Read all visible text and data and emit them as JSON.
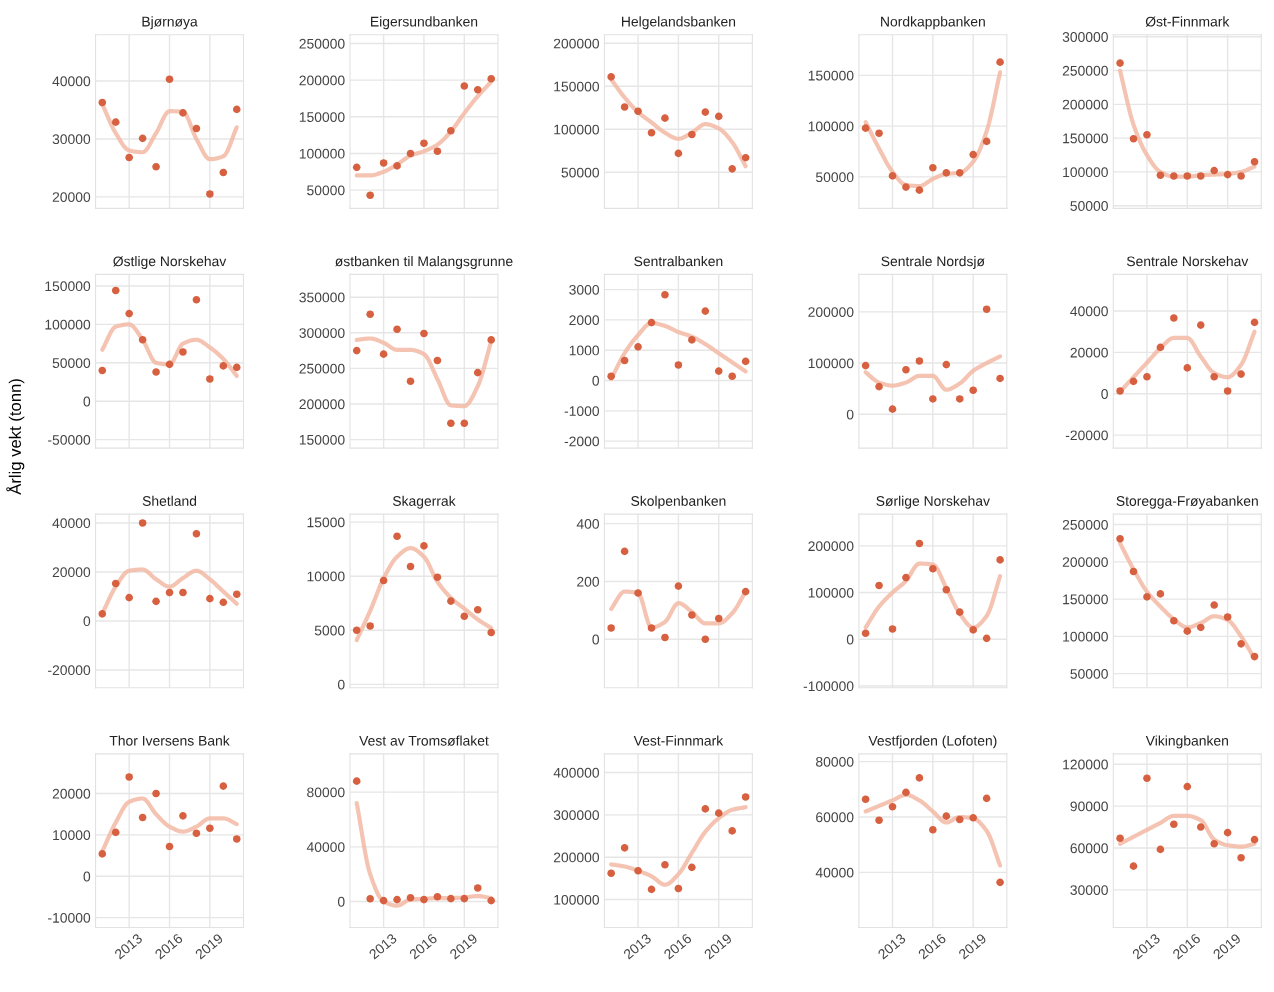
{
  "chart_data": [
    {
      "type": "scatter",
      "title": "Bjørnøya",
      "x": [
        2011,
        2012,
        2013,
        2014,
        2015,
        2016,
        2017,
        2018,
        2019,
        2020,
        2021
      ],
      "xlim": [
        2010.5,
        2021.5
      ],
      "xticks": [
        2013,
        2016,
        2019
      ],
      "ylim": [
        18000,
        48000
      ],
      "yticks": [
        20000,
        30000,
        40000
      ],
      "grid": true,
      "tick_labels": "y",
      "series": [
        {
          "type": "line",
          "color": "#f2b9a5",
          "values": [
            36000,
            31000,
            28000,
            27700,
            31000,
            34800,
            34700,
            30000,
            26500,
            27000,
            32000
          ]
        },
        {
          "type": "scatter",
          "color": "#d6603f",
          "values": [
            36300,
            32900,
            26800,
            30100,
            25200,
            40300,
            34500,
            31800,
            20500,
            24200,
            35100
          ]
        }
      ]
    },
    {
      "type": "scatter",
      "title": "Eigersundbanken",
      "x": [
        2011,
        2012,
        2013,
        2014,
        2015,
        2016,
        2017,
        2018,
        2019,
        2020,
        2021
      ],
      "xlim": [
        2010.5,
        2021.5
      ],
      "xticks": [
        2013,
        2016,
        2019
      ],
      "ylim": [
        25000,
        262000
      ],
      "yticks": [
        50000,
        100000,
        150000,
        200000,
        250000
      ],
      "grid": true,
      "tick_labels": "y",
      "series": [
        {
          "type": "line",
          "color": "#f2b9a5",
          "values": [
            70000,
            70000,
            75000,
            85000,
            97000,
            103000,
            112000,
            130000,
            155000,
            178000,
            198000
          ]
        },
        {
          "type": "scatter",
          "color": "#d6603f",
          "values": [
            81000,
            43000,
            87000,
            83000,
            100000,
            114000,
            103000,
            131000,
            192000,
            187000,
            202000
          ]
        }
      ]
    },
    {
      "type": "scatter",
      "title": "Helgelandsbanken",
      "x": [
        2011,
        2012,
        2013,
        2014,
        2015,
        2016,
        2017,
        2018,
        2019,
        2020,
        2021
      ],
      "xlim": [
        2010.5,
        2021.5
      ],
      "xticks": [
        2013,
        2016,
        2019
      ],
      "ylim": [
        8000,
        210000
      ],
      "yticks": [
        50000,
        100000,
        150000,
        200000
      ],
      "grid": true,
      "tick_labels": "y",
      "series": [
        {
          "type": "line",
          "color": "#f2b9a5",
          "values": [
            158000,
            137000,
            120000,
            108000,
            96000,
            89000,
            96000,
            106000,
            101000,
            85000,
            57000
          ]
        },
        {
          "type": "scatter",
          "color": "#d6603f",
          "values": [
            161000,
            126000,
            121000,
            96000,
            113000,
            72000,
            94000,
            120000,
            115000,
            54000,
            67000
          ]
        }
      ]
    },
    {
      "type": "scatter",
      "title": "Nordkappbanken",
      "x": [
        2011,
        2012,
        2013,
        2014,
        2015,
        2016,
        2017,
        2018,
        2019,
        2020,
        2021
      ],
      "xlim": [
        2010.5,
        2021.5
      ],
      "xticks": [
        2013,
        2016,
        2019
      ],
      "ylim": [
        19000,
        190000
      ],
      "yticks": [
        50000,
        100000,
        150000
      ],
      "grid": true,
      "tick_labels": "y",
      "series": [
        {
          "type": "line",
          "color": "#f2b9a5",
          "values": [
            104000,
            78000,
            55000,
            42000,
            41000,
            48000,
            53000,
            54000,
            65000,
            95000,
            153000
          ]
        },
        {
          "type": "scatter",
          "color": "#d6603f",
          "values": [
            98000,
            93000,
            51000,
            40000,
            37000,
            59000,
            54000,
            54000,
            72000,
            85000,
            163000
          ]
        }
      ]
    },
    {
      "type": "scatter",
      "title": "Øst-Finnmark",
      "x": [
        2011,
        2012,
        2013,
        2014,
        2015,
        2016,
        2017,
        2018,
        2019,
        2020,
        2021
      ],
      "xlim": [
        2010.5,
        2021.5
      ],
      "xticks": [
        2013,
        2016,
        2019
      ],
      "ylim": [
        46000,
        303000
      ],
      "yticks": [
        50000,
        100000,
        150000,
        200000,
        250000,
        300000
      ],
      "grid": true,
      "tick_labels": "y",
      "series": [
        {
          "type": "line",
          "color": "#f2b9a5",
          "values": [
            250000,
            170000,
            125000,
            100000,
            93000,
            93000,
            95000,
            96000,
            97000,
            100000,
            108000
          ]
        },
        {
          "type": "scatter",
          "color": "#d6603f",
          "values": [
            261000,
            149000,
            155000,
            95000,
            94000,
            94000,
            94000,
            102000,
            96000,
            94000,
            115000
          ]
        }
      ]
    },
    {
      "type": "scatter",
      "title": "Østlige Norskehav",
      "x": [
        2011,
        2012,
        2013,
        2014,
        2015,
        2016,
        2017,
        2018,
        2019,
        2020,
        2021
      ],
      "xlim": [
        2010.5,
        2021.5
      ],
      "xticks": [
        2013,
        2016,
        2019
      ],
      "ylim": [
        -61000,
        165000
      ],
      "yticks": [
        -50000,
        0,
        50000,
        100000,
        150000
      ],
      "grid": true,
      "tick_labels": "y",
      "series": [
        {
          "type": "line",
          "color": "#f2b9a5",
          "values": [
            67000,
            97000,
            100000,
            80000,
            50000,
            48000,
            75000,
            80000,
            70000,
            55000,
            33000
          ]
        },
        {
          "type": "scatter",
          "color": "#d6603f",
          "values": [
            40000,
            144000,
            114000,
            80000,
            38000,
            48000,
            64000,
            132000,
            29000,
            46000,
            44000
          ]
        }
      ]
    },
    {
      "type": "scatter",
      "title": "østbanken til Malangsgrunne",
      "x": [
        2011,
        2012,
        2013,
        2014,
        2015,
        2016,
        2017,
        2018,
        2019,
        2020,
        2021
      ],
      "xlim": [
        2010.5,
        2021.5
      ],
      "xticks": [
        2013,
        2016,
        2019
      ],
      "ylim": [
        138000,
        382000
      ],
      "yticks": [
        150000,
        200000,
        250000,
        300000,
        350000
      ],
      "grid": true,
      "tick_labels": "y",
      "series": [
        {
          "type": "line",
          "color": "#f2b9a5",
          "values": [
            290000,
            292000,
            286000,
            276000,
            276000,
            270000,
            235000,
            198000,
            197000,
            225000,
            288000
          ]
        },
        {
          "type": "scatter",
          "color": "#d6603f",
          "values": [
            275000,
            326000,
            270000,
            305000,
            232000,
            299000,
            261000,
            173000,
            173000,
            244000,
            290000
          ]
        }
      ]
    },
    {
      "type": "scatter",
      "title": "Sentralbanken",
      "x": [
        2011,
        2012,
        2013,
        2014,
        2015,
        2016,
        2017,
        2018,
        2019,
        2020,
        2021
      ],
      "xlim": [
        2010.5,
        2021.5
      ],
      "xticks": [
        2013,
        2016,
        2019
      ],
      "ylim": [
        -2230,
        3500
      ],
      "yticks": [
        -2000,
        -1000,
        0,
        1000,
        2000,
        3000
      ],
      "grid": true,
      "tick_labels": "y",
      "series": [
        {
          "type": "line",
          "color": "#f2b9a5",
          "values": [
            50,
            900,
            1500,
            1900,
            1800,
            1600,
            1450,
            1200,
            900,
            600,
            300
          ]
        },
        {
          "type": "scatter",
          "color": "#d6603f",
          "values": [
            140,
            660,
            1110,
            1910,
            2830,
            510,
            1340,
            2290,
            310,
            140,
            630
          ]
        }
      ]
    },
    {
      "type": "scatter",
      "title": "Sentrale Nordsjø",
      "x": [
        2011,
        2012,
        2013,
        2014,
        2015,
        2016,
        2017,
        2018,
        2019,
        2020,
        2021
      ],
      "xlim": [
        2010.5,
        2021.5
      ],
      "xticks": [
        2013,
        2016,
        2019
      ],
      "ylim": [
        -66000,
        273000
      ],
      "yticks": [
        0,
        100000,
        200000
      ],
      "grid": true,
      "tick_labels": "y",
      "series": [
        {
          "type": "line",
          "color": "#f2b9a5",
          "values": [
            82000,
            62000,
            56000,
            62000,
            75000,
            75000,
            48000,
            60000,
            85000,
            100000,
            113000
          ]
        },
        {
          "type": "scatter",
          "color": "#d6603f",
          "values": [
            95000,
            54000,
            10000,
            87000,
            104000,
            30000,
            97000,
            30000,
            47000,
            205000,
            70000
          ]
        }
      ]
    },
    {
      "type": "scatter",
      "title": "Sentrale Norskehav",
      "x": [
        2011,
        2012,
        2013,
        2014,
        2015,
        2016,
        2017,
        2018,
        2019,
        2020,
        2021
      ],
      "xlim": [
        2010.5,
        2021.5
      ],
      "xticks": [
        2013,
        2016,
        2019
      ],
      "ylim": [
        -26300,
        57700
      ],
      "yticks": [
        -20000,
        0,
        20000,
        40000
      ],
      "grid": true,
      "tick_labels": "y",
      "series": [
        {
          "type": "line",
          "color": "#f2b9a5",
          "values": [
            1000,
            8000,
            15000,
            22000,
            27000,
            27000,
            18000,
            10000,
            8000,
            14000,
            30000
          ]
        },
        {
          "type": "scatter",
          "color": "#d6603f",
          "values": [
            1300,
            6000,
            8200,
            22400,
            36600,
            12500,
            33200,
            8200,
            1300,
            9500,
            34500
          ]
        }
      ]
    },
    {
      "type": "scatter",
      "title": "Shetland",
      "ylabel": "Årlig vekt (tonn)",
      "x": [
        2011,
        2012,
        2013,
        2014,
        2015,
        2016,
        2017,
        2018,
        2019,
        2020,
        2021
      ],
      "xlim": [
        2010.5,
        2021.5
      ],
      "xticks": [
        2013,
        2016,
        2019
      ],
      "ylim": [
        -27300,
        43600
      ],
      "yticks": [
        -20000,
        0,
        20000,
        40000
      ],
      "grid": true,
      "tick_labels": "y",
      "series": [
        {
          "type": "line",
          "color": "#f2b9a5",
          "values": [
            3000,
            14000,
            20500,
            21000,
            17000,
            14000,
            17500,
            20500,
            17000,
            12000,
            7000
          ]
        },
        {
          "type": "scatter",
          "color": "#d6603f",
          "values": [
            2900,
            15300,
            9500,
            40000,
            8000,
            11600,
            11600,
            35600,
            9100,
            7600,
            10900
          ]
        }
      ]
    },
    {
      "type": "scatter",
      "title": "Skagerrak",
      "x": [
        2011,
        2012,
        2013,
        2014,
        2015,
        2016,
        2017,
        2018,
        2019,
        2020,
        2021
      ],
      "xlim": [
        2010.5,
        2021.5
      ],
      "xticks": [
        2013,
        2016,
        2019
      ],
      "ylim": [
        -320,
        15740
      ],
      "yticks": [
        0,
        5000,
        10000,
        15000
      ],
      "grid": true,
      "tick_labels": "y",
      "series": [
        {
          "type": "line",
          "color": "#f2b9a5",
          "values": [
            4100,
            6800,
            9800,
            11800,
            12600,
            11800,
            9500,
            8000,
            7000,
            6000,
            5200
          ]
        },
        {
          "type": "scatter",
          "color": "#d6603f",
          "values": [
            5000,
            5400,
            9600,
            13700,
            10900,
            12800,
            9900,
            7700,
            6300,
            6900,
            4800
          ]
        }
      ]
    },
    {
      "type": "scatter",
      "title": "Skolpenbanken",
      "x": [
        2011,
        2012,
        2013,
        2014,
        2015,
        2016,
        2017,
        2018,
        2019,
        2020,
        2021
      ],
      "xlim": [
        2010.5,
        2021.5
      ],
      "xticks": [
        2013,
        2016,
        2019
      ],
      "ylim": [
        -168,
        433
      ],
      "yticks": [
        0,
        200,
        400
      ],
      "grid": true,
      "tick_labels": "y",
      "series": [
        {
          "type": "line",
          "color": "#f2b9a5",
          "values": [
            105,
            165,
            160,
            40,
            60,
            125,
            95,
            55,
            55,
            90,
            165
          ]
        },
        {
          "type": "scatter",
          "color": "#d6603f",
          "values": [
            39,
            304,
            160,
            39,
            6,
            184,
            84,
            0,
            72,
            null,
            165
          ]
        }
      ]
    },
    {
      "type": "scatter",
      "title": "Sørlige Norskehav",
      "x": [
        2011,
        2012,
        2013,
        2014,
        2015,
        2016,
        2017,
        2018,
        2019,
        2020,
        2021
      ],
      "xlim": [
        2010.5,
        2021.5
      ],
      "xticks": [
        2013,
        2016,
        2019
      ],
      "ylim": [
        -104000,
        268000
      ],
      "yticks": [
        -100000,
        0,
        100000,
        200000
      ],
      "grid": true,
      "tick_labels": "y",
      "series": [
        {
          "type": "line",
          "color": "#f2b9a5",
          "values": [
            25000,
            70000,
            100000,
            125000,
            162000,
            160000,
            110000,
            55000,
            25000,
            50000,
            135000
          ]
        },
        {
          "type": "scatter",
          "color": "#d6603f",
          "values": [
            13000,
            115000,
            22000,
            132000,
            205000,
            151000,
            106000,
            58000,
            20000,
            2000,
            170000
          ]
        }
      ]
    },
    {
      "type": "scatter",
      "title": "Storegga-Frøyabanken",
      "x": [
        2011,
        2012,
        2013,
        2014,
        2015,
        2016,
        2017,
        2018,
        2019,
        2020,
        2021
      ],
      "xlim": [
        2010.5,
        2021.5
      ],
      "xticks": [
        2013,
        2016,
        2019
      ],
      "ylim": [
        31000,
        264000
      ],
      "yticks": [
        50000,
        100000,
        150000,
        200000,
        250000
      ],
      "grid": true,
      "tick_labels": "y",
      "series": [
        {
          "type": "line",
          "color": "#f2b9a5",
          "values": [
            225000,
            190000,
            160000,
            140000,
            123000,
            112000,
            118000,
            127000,
            122000,
            100000,
            70000
          ]
        },
        {
          "type": "scatter",
          "color": "#d6603f",
          "values": [
            231000,
            187000,
            153000,
            157000,
            121000,
            107000,
            112000,
            142000,
            126000,
            90000,
            73000
          ]
        }
      ]
    },
    {
      "type": "scatter",
      "title": "Thor Iversens Bank",
      "x": [
        2011,
        2012,
        2013,
        2014,
        2015,
        2016,
        2017,
        2018,
        2019,
        2020,
        2021
      ],
      "xlim": [
        2010.5,
        2021.5
      ],
      "xticks": [
        2013,
        2016,
        2019
      ],
      "ylim": [
        -12400,
        29600
      ],
      "yticks": [
        -10000,
        0,
        10000,
        20000
      ],
      "grid": true,
      "series": [
        {
          "type": "line",
          "color": "#f2b9a5",
          "values": [
            6000,
            13000,
            18000,
            18800,
            15000,
            12000,
            10800,
            12000,
            14000,
            14000,
            12600
          ]
        },
        {
          "type": "scatter",
          "color": "#d6603f",
          "values": [
            5400,
            10600,
            24000,
            14200,
            20000,
            7200,
            14600,
            10400,
            11600,
            21800,
            9000
          ]
        }
      ]
    },
    {
      "type": "scatter",
      "title": "Vest av Tromsøflaket",
      "x": [
        2011,
        2012,
        2013,
        2014,
        2015,
        2016,
        2017,
        2018,
        2019,
        2020,
        2021
      ],
      "xlim": [
        2010.5,
        2021.5
      ],
      "xticks": [
        2013,
        2016,
        2019
      ],
      "ylim": [
        -19000,
        108000
      ],
      "yticks": [
        0,
        40000,
        80000
      ],
      "grid": true,
      "series": [
        {
          "type": "line",
          "color": "#f2b9a5",
          "values": [
            72000,
            20000,
            0,
            -3000,
            1500,
            2000,
            2500,
            2500,
            3000,
            4000,
            2500
          ]
        },
        {
          "type": "scatter",
          "color": "#d6603f",
          "values": [
            88000,
            2000,
            700,
            1400,
            2800,
            1400,
            3500,
            2100,
            2100,
            9900,
            700
          ]
        }
      ]
    },
    {
      "type": "scatter",
      "title": "Vest-Finnmark",
      "x": [
        2011,
        2012,
        2013,
        2014,
        2015,
        2016,
        2017,
        2018,
        2019,
        2020,
        2021
      ],
      "xlim": [
        2010.5,
        2021.5
      ],
      "xticks": [
        2013,
        2016,
        2019
      ],
      "ylim": [
        34000,
        444000
      ],
      "yticks": [
        100000,
        200000,
        300000,
        400000
      ],
      "grid": true,
      "series": [
        {
          "type": "line",
          "color": "#f2b9a5",
          "values": [
            183000,
            178000,
            168000,
            155000,
            135000,
            160000,
            210000,
            260000,
            292000,
            312000,
            318000
          ]
        },
        {
          "type": "scatter",
          "color": "#d6603f",
          "values": [
            162000,
            222000,
            168000,
            124000,
            182000,
            126000,
            176000,
            314000,
            304000,
            262000,
            342000
          ]
        }
      ]
    },
    {
      "type": "scatter",
      "title": "Vestfjorden (Lofoten)",
      "x": [
        2011,
        2012,
        2013,
        2014,
        2015,
        2016,
        2017,
        2018,
        2019,
        2020,
        2021
      ],
      "xlim": [
        2010.5,
        2021.5
      ],
      "xticks": [
        2013,
        2016,
        2019
      ],
      "ylim": [
        20100,
        82800
      ],
      "yticks": [
        40000,
        60000,
        80000
      ],
      "grid": true,
      "series": [
        {
          "type": "line",
          "color": "#f2b9a5",
          "values": [
            62000,
            64000,
            66000,
            68000,
            66000,
            62000,
            58000,
            60000,
            59500,
            55000,
            42500
          ]
        },
        {
          "type": "scatter",
          "color": "#d6603f",
          "values": [
            66400,
            58800,
            63700,
            68900,
            74100,
            55400,
            60300,
            59100,
            59700,
            66700,
            36400
          ]
        }
      ]
    },
    {
      "type": "scatter",
      "title": "Vikingbanken",
      "x": [
        2011,
        2012,
        2013,
        2014,
        2015,
        2016,
        2017,
        2018,
        2019,
        2020,
        2021
      ],
      "xlim": [
        2010.5,
        2021.5
      ],
      "xticks": [
        2013,
        2016,
        2019
      ],
      "ylim": [
        3000,
        127500
      ],
      "yticks": [
        30000,
        60000,
        90000,
        120000
      ],
      "grid": true,
      "series": [
        {
          "type": "line",
          "color": "#f2b9a5",
          "values": [
            63000,
            68000,
            73000,
            78000,
            83000,
            83000,
            80000,
            66000,
            62000,
            61000,
            63000
          ]
        },
        {
          "type": "scatter",
          "color": "#d6603f",
          "values": [
            67000,
            47000,
            110000,
            59000,
            77000,
            104000,
            75000,
            63000,
            71000,
            53000,
            66000
          ]
        }
      ]
    }
  ]
}
